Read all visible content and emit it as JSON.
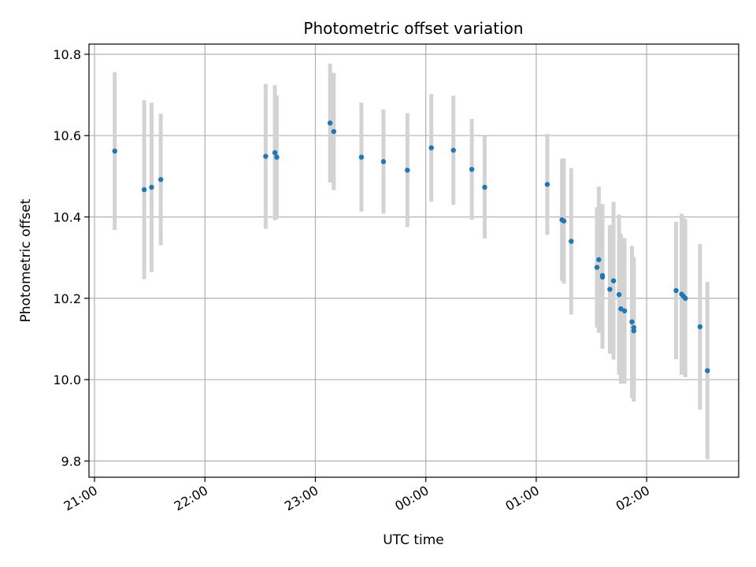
{
  "chart_data": {
    "type": "scatter",
    "title": "Photometric offset variation",
    "xlabel": "UTC time",
    "ylabel": "Photometric offset",
    "ylim": [
      9.76,
      10.825
    ],
    "xlim": [
      "20:57",
      "02:50"
    ],
    "grid": true,
    "y_ticks": [
      "9.8",
      "10.0",
      "10.2",
      "10.4",
      "10.6",
      "10.8"
    ],
    "x_ticks": [
      "21:00",
      "22:00",
      "23:00",
      "00:00",
      "01:00",
      "02:00"
    ],
    "colors": {
      "marker": "#1f77b4",
      "error_bar": "#d3d3d3",
      "grid": "#b0b0b0"
    },
    "points": [
      {
        "x": "21:11",
        "y": 10.562,
        "low": 10.368,
        "high": 10.756
      },
      {
        "x": "21:27",
        "y": 10.467,
        "low": 10.247,
        "high": 10.687
      },
      {
        "x": "21:31",
        "y": 10.473,
        "low": 10.265,
        "high": 10.681
      },
      {
        "x": "21:36",
        "y": 10.492,
        "low": 10.33,
        "high": 10.654
      },
      {
        "x": "22:33",
        "y": 10.549,
        "low": 10.371,
        "high": 10.727
      },
      {
        "x": "22:38",
        "y": 10.558,
        "low": 10.392,
        "high": 10.724
      },
      {
        "x": "22:39",
        "y": 10.547,
        "low": 10.395,
        "high": 10.699
      },
      {
        "x": "23:08",
        "y": 10.631,
        "low": 10.485,
        "high": 10.777
      },
      {
        "x": "23:10",
        "y": 10.61,
        "low": 10.466,
        "high": 10.754
      },
      {
        "x": "23:25",
        "y": 10.547,
        "low": 10.413,
        "high": 10.681
      },
      {
        "x": "23:37",
        "y": 10.536,
        "low": 10.408,
        "high": 10.664
      },
      {
        "x": "23:50",
        "y": 10.515,
        "low": 10.375,
        "high": 10.655
      },
      {
        "x": "00:03",
        "y": 10.57,
        "low": 10.438,
        "high": 10.702
      },
      {
        "x": "00:15",
        "y": 10.564,
        "low": 10.43,
        "high": 10.698
      },
      {
        "x": "00:25",
        "y": 10.517,
        "low": 10.393,
        "high": 10.641
      },
      {
        "x": "00:32",
        "y": 10.473,
        "low": 10.347,
        "high": 10.599
      },
      {
        "x": "01:06",
        "y": 10.48,
        "low": 10.356,
        "high": 10.604
      },
      {
        "x": "01:14",
        "y": 10.393,
        "low": 10.243,
        "high": 10.543
      },
      {
        "x": "01:15",
        "y": 10.39,
        "low": 10.236,
        "high": 10.544
      },
      {
        "x": "01:19",
        "y": 10.34,
        "low": 10.16,
        "high": 10.52
      },
      {
        "x": "01:33",
        "y": 10.276,
        "low": 10.128,
        "high": 10.424
      },
      {
        "x": "01:34",
        "y": 10.295,
        "low": 10.115,
        "high": 10.475
      },
      {
        "x": "01:36",
        "y": 10.252,
        "low": 10.076,
        "high": 10.428
      },
      {
        "x": "01:36",
        "y": 10.256,
        "low": 10.08,
        "high": 10.432
      },
      {
        "x": "01:40",
        "y": 10.222,
        "low": 10.064,
        "high": 10.38
      },
      {
        "x": "01:42",
        "y": 10.243,
        "low": 10.049,
        "high": 10.437
      },
      {
        "x": "01:45",
        "y": 10.209,
        "low": 10.012,
        "high": 10.406
      },
      {
        "x": "01:46",
        "y": 10.174,
        "low": 9.99,
        "high": 10.358
      },
      {
        "x": "01:48",
        "y": 10.169,
        "low": 9.99,
        "high": 10.348
      },
      {
        "x": "01:52",
        "y": 10.142,
        "low": 9.955,
        "high": 10.329
      },
      {
        "x": "01:53",
        "y": 10.12,
        "low": 9.946,
        "high": 10.294
      },
      {
        "x": "01:53",
        "y": 10.128,
        "low": 9.954,
        "high": 10.302
      },
      {
        "x": "02:16",
        "y": 10.219,
        "low": 10.05,
        "high": 10.388
      },
      {
        "x": "02:19",
        "y": 10.21,
        "low": 10.012,
        "high": 10.408
      },
      {
        "x": "02:20",
        "y": 10.205,
        "low": 10.013,
        "high": 10.397
      },
      {
        "x": "02:21",
        "y": 10.2,
        "low": 10.006,
        "high": 10.394
      },
      {
        "x": "02:29",
        "y": 10.13,
        "low": 9.926,
        "high": 10.334
      },
      {
        "x": "02:33",
        "y": 10.022,
        "low": 9.804,
        "high": 10.24
      }
    ]
  }
}
